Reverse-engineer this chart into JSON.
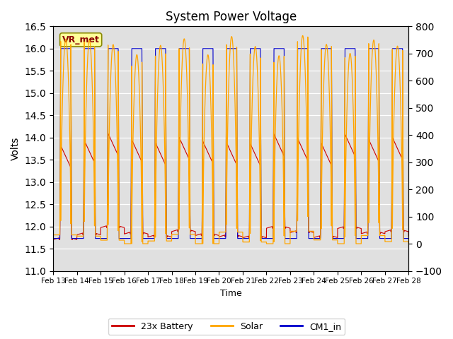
{
  "title": "System Power Voltage",
  "xlabel": "Time",
  "ylabel_left": "Volts",
  "ylim_left": [
    11.0,
    16.5
  ],
  "ylim_right": [
    -100,
    800
  ],
  "yticks_left": [
    11.0,
    11.5,
    12.0,
    12.5,
    13.0,
    13.5,
    14.0,
    14.5,
    15.0,
    15.5,
    16.0,
    16.5
  ],
  "yticks_right": [
    -100,
    0,
    100,
    200,
    300,
    400,
    500,
    600,
    700,
    800
  ],
  "xticklabels": [
    "Feb 13",
    "Feb 14",
    "Feb 15",
    "Feb 16",
    "Feb 17",
    "Feb 18",
    "Feb 19",
    "Feb 20",
    "Feb 21",
    "Feb 22",
    "Feb 23",
    "Feb 24",
    "Feb 25",
    "Feb 26",
    "Feb 27",
    "Feb 28"
  ],
  "color_battery": "#CC0000",
  "color_solar": "#FFA500",
  "color_cm1": "#0000CC",
  "background_color": "#E0E0E0",
  "grid_color": "#FFFFFF",
  "annotation_label": "VR_met",
  "annotation_color": "#8B0000",
  "annotation_bg": "#FFFF99",
  "legend_labels": [
    "23x Battery",
    "Solar",
    "CM1_in"
  ],
  "num_days": 15,
  "base_date_num": 13,
  "figsize": [
    6.4,
    4.8
  ],
  "dpi": 100
}
